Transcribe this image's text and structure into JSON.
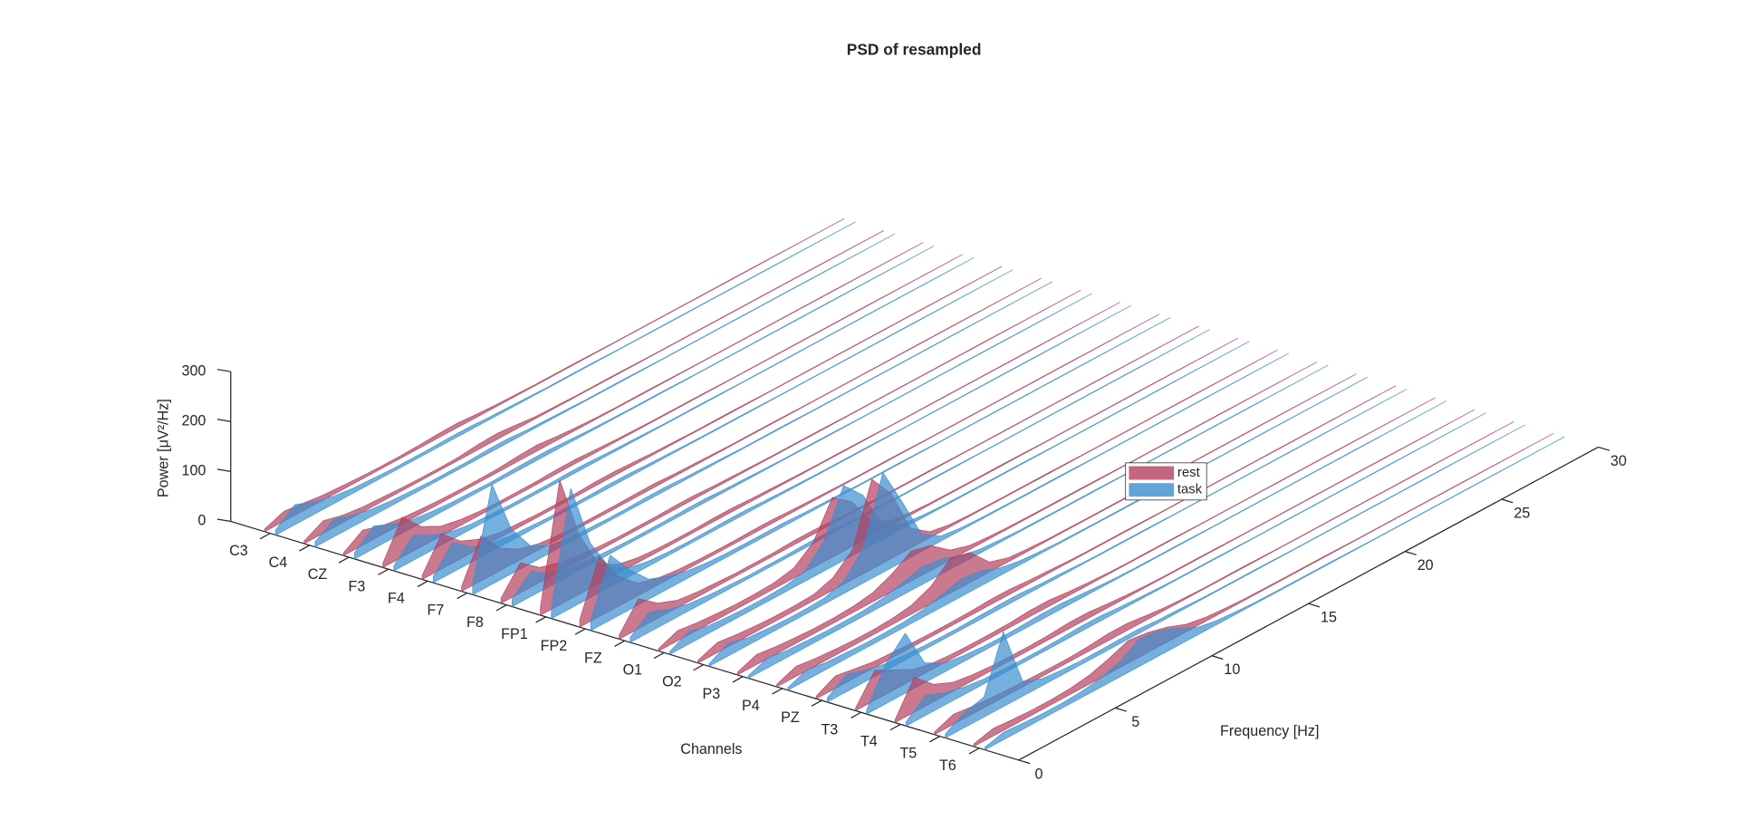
{
  "chart_data": {
    "type": "waterfall3d",
    "title": "PSD of resampled",
    "xlabel": "Frequency [Hz]",
    "ylabel": "Channels",
    "zlabel": "Power [μV²/Hz]",
    "categories": [
      "C3",
      "C4",
      "CZ",
      "F3",
      "F4",
      "F7",
      "F8",
      "FP1",
      "FP2",
      "FZ",
      "O1",
      "O2",
      "P3",
      "P4",
      "PZ",
      "T3",
      "T4",
      "T5",
      "T6"
    ],
    "x": [
      0,
      1,
      2,
      3,
      4,
      5,
      6,
      7,
      8,
      9,
      10,
      11,
      12,
      13,
      14,
      16,
      18,
      20,
      25,
      30
    ],
    "xlim": [
      0,
      30
    ],
    "xticks": [
      0,
      5,
      10,
      15,
      20,
      25,
      30
    ],
    "zlim": [
      0,
      300
    ],
    "zticks": [
      0,
      100,
      200,
      300
    ],
    "legend": "east",
    "series": [
      {
        "name": "rest",
        "color": "#b5405e",
        "values": [
          [
            5,
            20,
            15,
            10,
            8,
            6,
            5,
            5,
            6,
            8,
            9,
            6,
            4,
            3,
            2,
            2,
            1,
            1,
            1,
            0
          ],
          [
            5,
            25,
            15,
            10,
            8,
            6,
            5,
            5,
            6,
            10,
            12,
            8,
            4,
            3,
            2,
            2,
            1,
            1,
            1,
            0
          ],
          [
            5,
            30,
            18,
            12,
            9,
            7,
            6,
            6,
            7,
            10,
            12,
            8,
            5,
            3,
            2,
            2,
            1,
            1,
            1,
            0
          ],
          [
            8,
            80,
            40,
            20,
            12,
            8,
            6,
            6,
            6,
            8,
            8,
            6,
            4,
            3,
            2,
            2,
            1,
            1,
            1,
            0
          ],
          [
            8,
            70,
            35,
            18,
            10,
            8,
            6,
            6,
            6,
            8,
            8,
            6,
            4,
            3,
            2,
            2,
            1,
            1,
            1,
            0
          ],
          [
            10,
            90,
            45,
            22,
            12,
            8,
            6,
            6,
            6,
            7,
            7,
            5,
            4,
            3,
            2,
            2,
            1,
            1,
            1,
            0
          ],
          [
            10,
            60,
            30,
            18,
            12,
            8,
            6,
            6,
            6,
            7,
            7,
            5,
            4,
            3,
            2,
            2,
            1,
            1,
            1,
            0
          ],
          [
            15,
            250,
            120,
            40,
            18,
            10,
            7,
            6,
            6,
            7,
            7,
            5,
            4,
            3,
            2,
            2,
            1,
            1,
            1,
            0
          ],
          [
            15,
            120,
            60,
            25,
            14,
            9,
            7,
            6,
            6,
            7,
            7,
            5,
            4,
            3,
            2,
            2,
            1,
            1,
            1,
            0
          ],
          [
            8,
            60,
            30,
            15,
            10,
            8,
            6,
            6,
            6,
            8,
            8,
            6,
            4,
            3,
            2,
            2,
            1,
            1,
            1,
            0
          ],
          [
            5,
            20,
            15,
            12,
            10,
            10,
            12,
            20,
            50,
            120,
            90,
            30,
            10,
            5,
            3,
            2,
            2,
            1,
            1,
            0
          ],
          [
            5,
            20,
            15,
            12,
            10,
            10,
            12,
            25,
            60,
            180,
            130,
            40,
            12,
            5,
            3,
            2,
            2,
            1,
            1,
            0
          ],
          [
            5,
            20,
            15,
            12,
            10,
            10,
            12,
            18,
            35,
            60,
            50,
            20,
            8,
            5,
            3,
            2,
            2,
            1,
            1,
            0
          ],
          [
            5,
            20,
            15,
            12,
            10,
            10,
            12,
            18,
            35,
            70,
            60,
            20,
            8,
            5,
            3,
            2,
            2,
            1,
            1,
            0
          ],
          [
            5,
            25,
            18,
            12,
            10,
            8,
            7,
            7,
            8,
            10,
            10,
            7,
            5,
            3,
            2,
            2,
            1,
            1,
            1,
            0
          ],
          [
            5,
            60,
            40,
            20,
            12,
            9,
            8,
            8,
            9,
            12,
            12,
            8,
            5,
            3,
            2,
            2,
            1,
            1,
            1,
            0
          ],
          [
            5,
            70,
            35,
            18,
            12,
            9,
            8,
            8,
            9,
            12,
            12,
            8,
            5,
            3,
            2,
            2,
            1,
            1,
            1,
            0
          ],
          [
            5,
            20,
            15,
            12,
            10,
            9,
            8,
            8,
            10,
            14,
            14,
            9,
            5,
            3,
            2,
            2,
            1,
            1,
            1,
            0
          ],
          [
            5,
            15,
            12,
            10,
            10,
            12,
            18,
            30,
            45,
            40,
            30,
            15,
            8,
            5,
            3,
            2,
            2,
            1,
            1,
            0
          ]
        ]
      },
      {
        "name": "task",
        "color": "#3b8fd0",
        "values": [
          [
            10,
            40,
            25,
            15,
            10,
            8,
            6,
            6,
            6,
            7,
            7,
            5,
            4,
            3,
            2,
            2,
            1,
            1,
            1,
            0
          ],
          [
            10,
            35,
            22,
            14,
            10,
            8,
            6,
            6,
            6,
            8,
            8,
            5,
            4,
            3,
            2,
            2,
            1,
            1,
            1,
            0
          ],
          [
            12,
            45,
            28,
            16,
            11,
            8,
            7,
            6,
            7,
            8,
            8,
            6,
            4,
            3,
            2,
            2,
            1,
            1,
            1,
            0
          ],
          [
            10,
            50,
            30,
            16,
            10,
            8,
            6,
            6,
            6,
            7,
            7,
            5,
            4,
            3,
            2,
            2,
            1,
            1,
            1,
            0
          ],
          [
            12,
            60,
            30,
            16,
            10,
            8,
            6,
            6,
            6,
            7,
            7,
            5,
            4,
            3,
            2,
            2,
            1,
            1,
            1,
            0
          ],
          [
            20,
            200,
            90,
            35,
            15,
            9,
            7,
            6,
            6,
            7,
            7,
            5,
            4,
            3,
            2,
            2,
            1,
            1,
            1,
            0
          ],
          [
            15,
            50,
            25,
            15,
            10,
            8,
            6,
            6,
            6,
            7,
            7,
            5,
            4,
            3,
            2,
            2,
            1,
            1,
            1,
            0
          ],
          [
            20,
            240,
            110,
            40,
            18,
            10,
            7,
            6,
            6,
            7,
            7,
            5,
            4,
            3,
            2,
            2,
            1,
            1,
            1,
            0
          ],
          [
            20,
            130,
            80,
            40,
            25,
            15,
            10,
            8,
            7,
            7,
            7,
            5,
            4,
            3,
            2,
            2,
            1,
            1,
            1,
            0
          ],
          [
            10,
            40,
            25,
            14,
            10,
            8,
            6,
            6,
            6,
            7,
            7,
            5,
            4,
            3,
            2,
            2,
            1,
            1,
            1,
            0
          ],
          [
            5,
            25,
            15,
            12,
            10,
            10,
            12,
            20,
            60,
            150,
            110,
            30,
            10,
            5,
            3,
            2,
            2,
            1,
            1,
            0
          ],
          [
            5,
            25,
            15,
            12,
            10,
            10,
            12,
            25,
            70,
            200,
            120,
            35,
            10,
            5,
            3,
            2,
            2,
            1,
            1,
            0
          ],
          [
            5,
            20,
            14,
            12,
            10,
            10,
            11,
            15,
            25,
            35,
            30,
            15,
            8,
            5,
            3,
            2,
            2,
            1,
            1,
            0
          ],
          [
            5,
            20,
            14,
            12,
            10,
            10,
            11,
            15,
            25,
            35,
            30,
            15,
            8,
            5,
            3,
            2,
            2,
            1,
            1,
            0
          ],
          [
            8,
            35,
            22,
            14,
            10,
            8,
            7,
            7,
            8,
            9,
            9,
            6,
            5,
            3,
            2,
            2,
            1,
            1,
            1,
            0
          ],
          [
            8,
            80,
            120,
            40,
            18,
            12,
            9,
            8,
            9,
            11,
            11,
            8,
            5,
            3,
            2,
            2,
            1,
            1,
            1,
            0
          ],
          [
            8,
            40,
            25,
            15,
            10,
            8,
            7,
            7,
            8,
            10,
            10,
            7,
            5,
            3,
            2,
            2,
            1,
            1,
            1,
            0
          ],
          [
            8,
            30,
            40,
            150,
            30,
            14,
            10,
            8,
            8,
            9,
            9,
            6,
            5,
            3,
            2,
            2,
            1,
            1,
            1,
            0
          ],
          [
            5,
            15,
            12,
            10,
            10,
            12,
            18,
            30,
            55,
            50,
            35,
            15,
            8,
            5,
            3,
            2,
            2,
            1,
            1,
            0
          ]
        ]
      }
    ]
  }
}
